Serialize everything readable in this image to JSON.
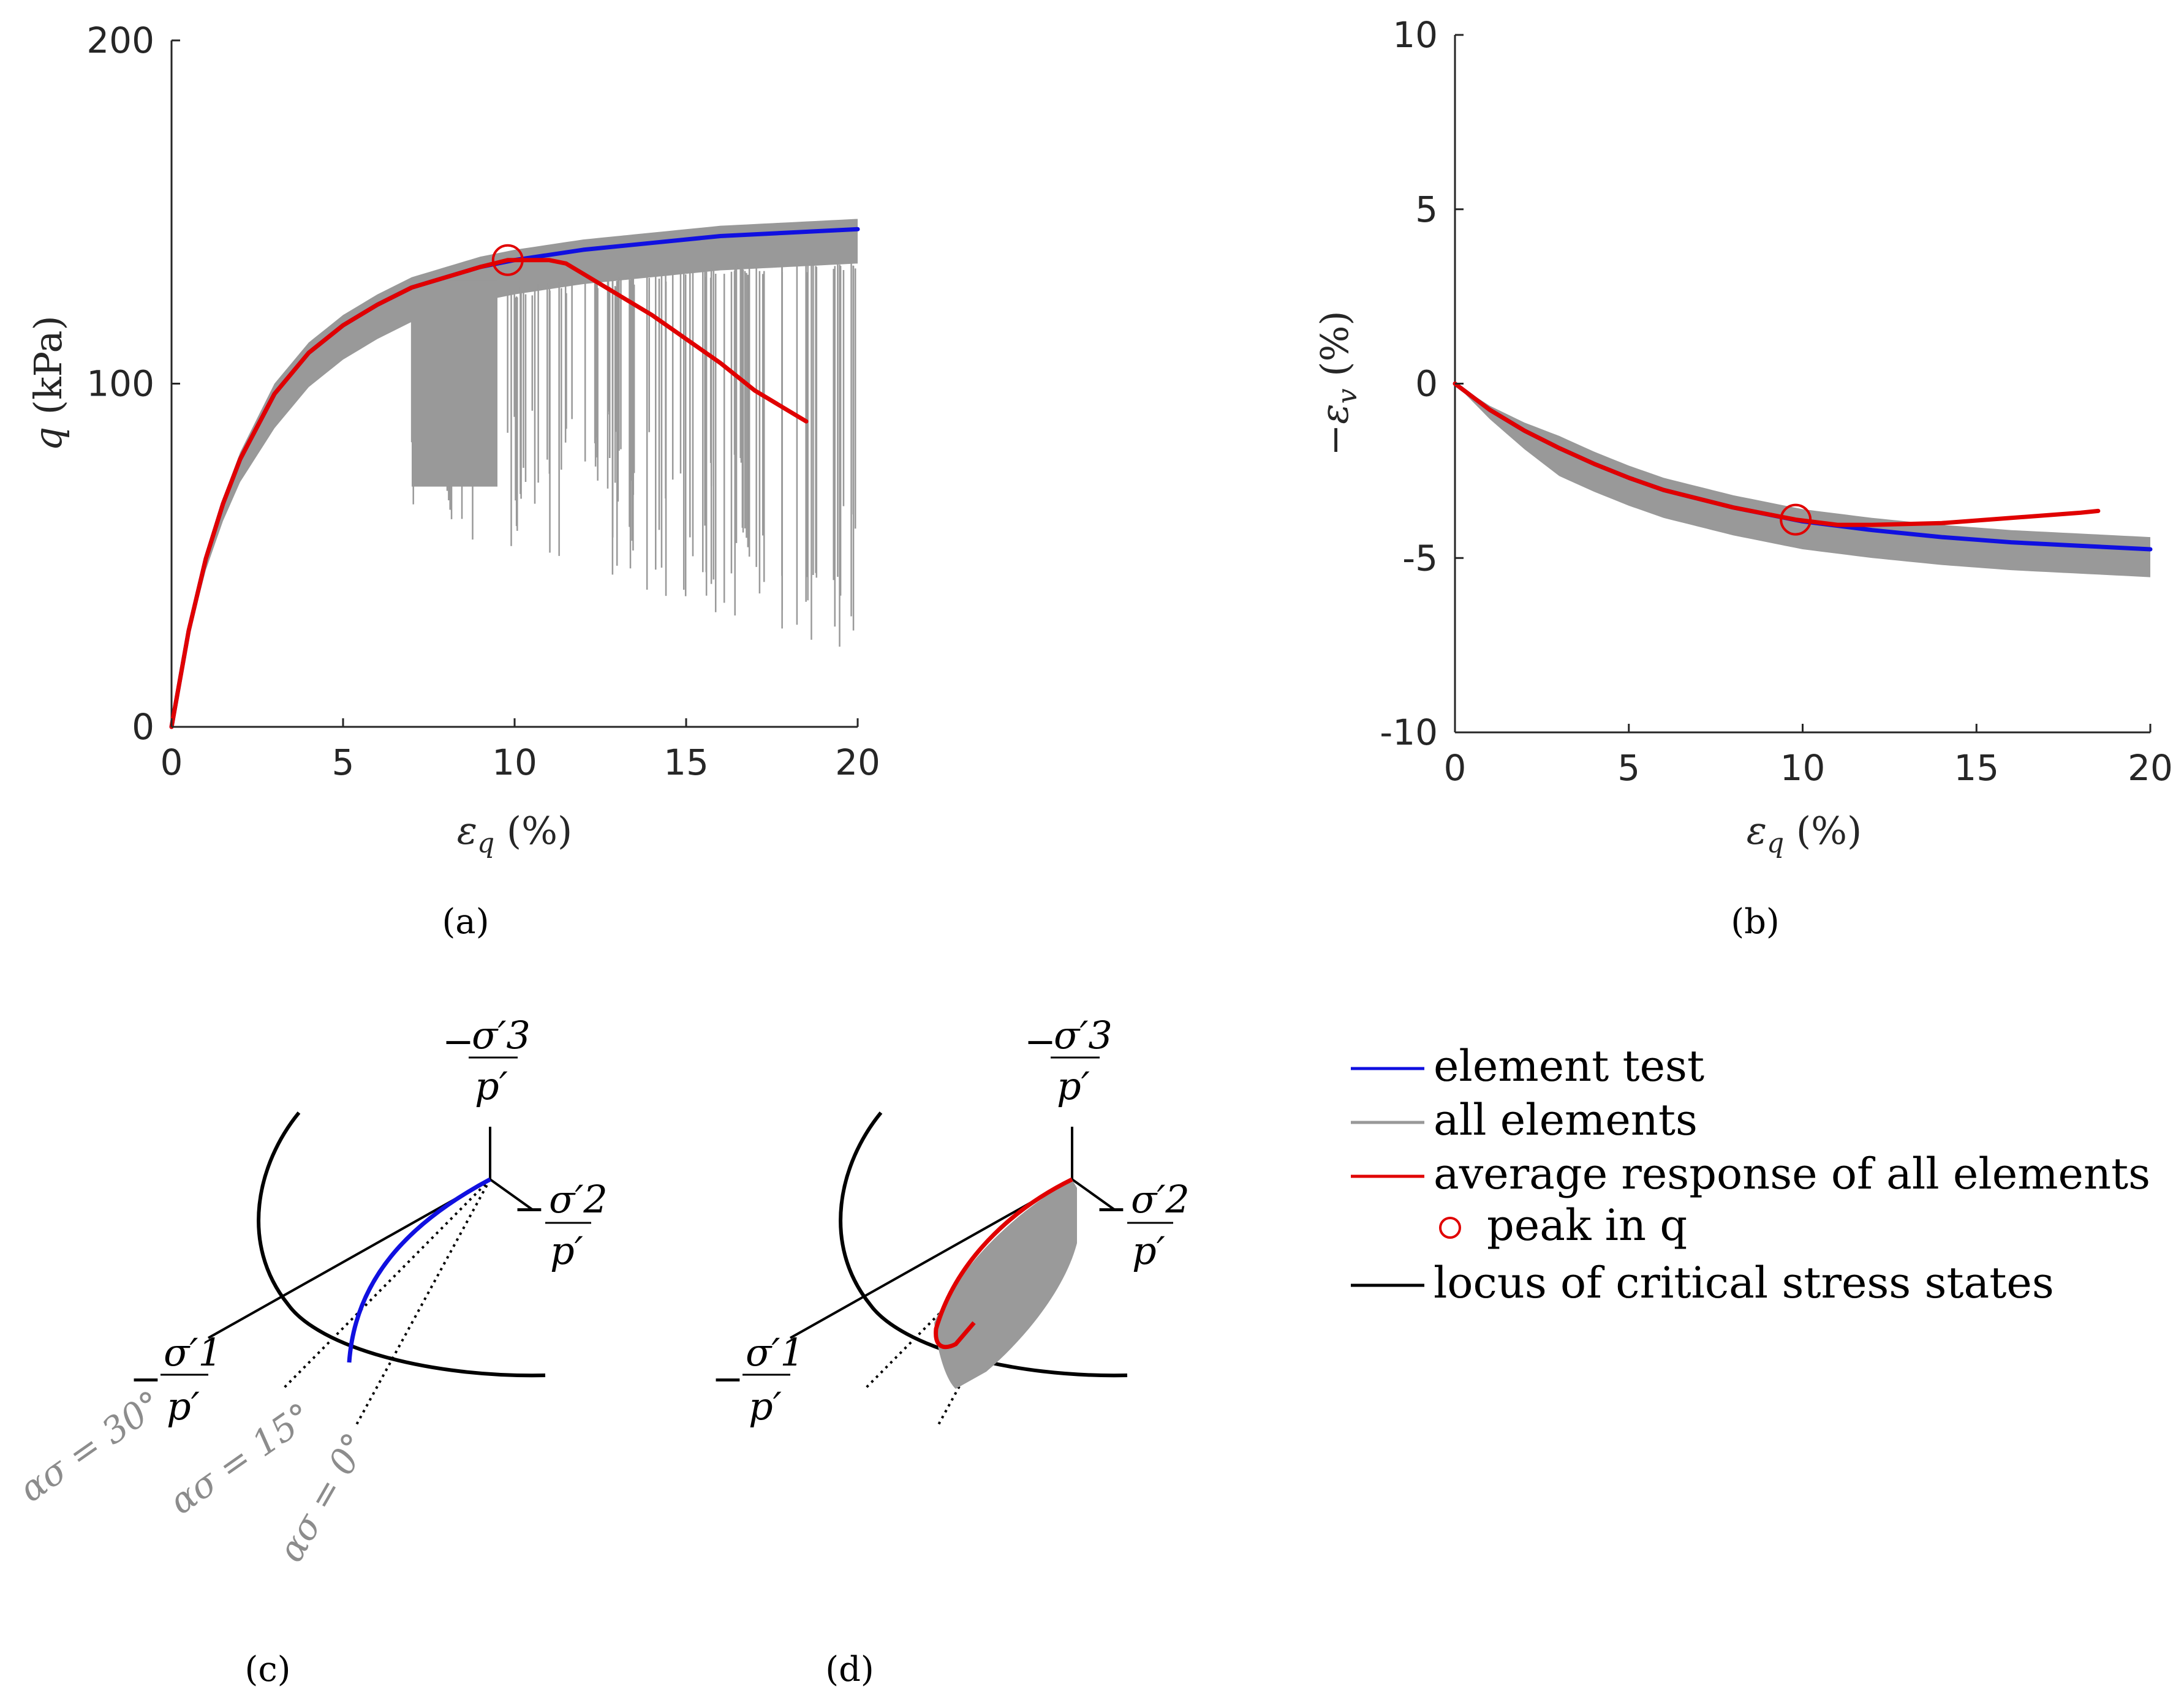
{
  "chart_data": [
    {
      "type": "line",
      "panel": "(a)",
      "caption": "(a)",
      "xlabel": "εq (%)",
      "ylabel": "q (kPa)",
      "xlim": [
        0,
        20
      ],
      "ylim": [
        0,
        200
      ],
      "xticks": [
        "0",
        "5",
        "10",
        "15",
        "20"
      ],
      "yticks": [
        "0",
        "100",
        "200"
      ],
      "series": [
        {
          "name": "element test",
          "color": "#1010e0",
          "x": [
            0,
            0.5,
            1,
            1.5,
            2,
            3,
            4,
            5,
            6,
            7,
            8,
            9,
            10,
            12,
            14,
            16,
            18,
            20
          ],
          "y": [
            0,
            28,
            49,
            65,
            78,
            97,
            109,
            117,
            123,
            128,
            131,
            134,
            136,
            139,
            141,
            143,
            144,
            145
          ]
        },
        {
          "name": "average response of all elements",
          "color": "#e00000",
          "x": [
            0,
            0.5,
            1,
            1.5,
            2,
            3,
            4,
            5,
            6,
            7,
            8,
            9,
            9.8,
            10.5,
            11,
            11.5,
            12,
            13,
            14,
            15,
            16,
            17,
            18,
            18.5
          ],
          "y": [
            0,
            28,
            49,
            65,
            78,
            97,
            109,
            117,
            123,
            128,
            131,
            134,
            136,
            136,
            136,
            135,
            132,
            126,
            120,
            113,
            106,
            98,
            92,
            89
          ]
        }
      ],
      "band": {
        "name": "all elements",
        "color": "#999999",
        "upper_offset": 3,
        "lower_offset": -10,
        "drop_start_x": 7,
        "drop_min_q": 20
      },
      "marker": {
        "label": "peak in q",
        "x": 9.8,
        "y": 136
      }
    },
    {
      "type": "line",
      "panel": "(b)",
      "caption": "(b)",
      "xlabel": "εq (%)",
      "ylabel": "−εv (%)",
      "xlim": [
        0,
        20
      ],
      "ylim": [
        -10,
        10
      ],
      "xticks": [
        "0",
        "5",
        "10",
        "15",
        "20"
      ],
      "yticks": [
        "-10",
        "-5",
        "0",
        "5",
        "10"
      ],
      "series": [
        {
          "name": "element test",
          "color": "#1010e0",
          "x": [
            0,
            1,
            2,
            3,
            4,
            5,
            6,
            8,
            10,
            12,
            14,
            16,
            18,
            20
          ],
          "y": [
            0,
            -0.75,
            -1.35,
            -1.85,
            -2.3,
            -2.7,
            -3.05,
            -3.55,
            -3.95,
            -4.2,
            -4.4,
            -4.55,
            -4.65,
            -4.75
          ]
        },
        {
          "name": "average response of all elements",
          "color": "#e00000",
          "x": [
            0,
            1,
            2,
            3,
            4,
            5,
            6,
            8,
            9.8,
            11,
            12,
            14,
            16,
            18,
            18.5
          ],
          "y": [
            0,
            -0.75,
            -1.35,
            -1.85,
            -2.3,
            -2.7,
            -3.05,
            -3.55,
            -3.9,
            -4.05,
            -4.05,
            -4.0,
            -3.85,
            -3.7,
            -3.65
          ]
        }
      ],
      "band": {
        "name": "all elements",
        "color": "#999999",
        "upper_offset": 0.35,
        "lower_offset": -0.8
      },
      "marker": {
        "label": "peak in q",
        "x": 9.8,
        "y": -3.9
      }
    }
  ],
  "panel_c": {
    "caption": "(c)",
    "axis_labels": {
      "s1_num": "σ′1",
      "s2_num": "σ′2",
      "s3_num": "σ′3",
      "den": "p′",
      "minus": "−"
    },
    "alpha_labels": [
      "ασ = 30°",
      "ασ = 15°",
      "ασ = 0°"
    ]
  },
  "panel_d": {
    "caption": "(d)"
  },
  "legend": {
    "items": [
      {
        "label": "element test",
        "color": "#1010e0",
        "kind": "line"
      },
      {
        "label": "all elements",
        "color": "#999999",
        "kind": "line"
      },
      {
        "label": "average response of all elements",
        "color": "#e00000",
        "kind": "line"
      },
      {
        "label": "peak in q",
        "color": "#e00000",
        "kind": "circle"
      },
      {
        "label": "locus of critical stress states",
        "color": "#000000",
        "kind": "line"
      }
    ]
  }
}
